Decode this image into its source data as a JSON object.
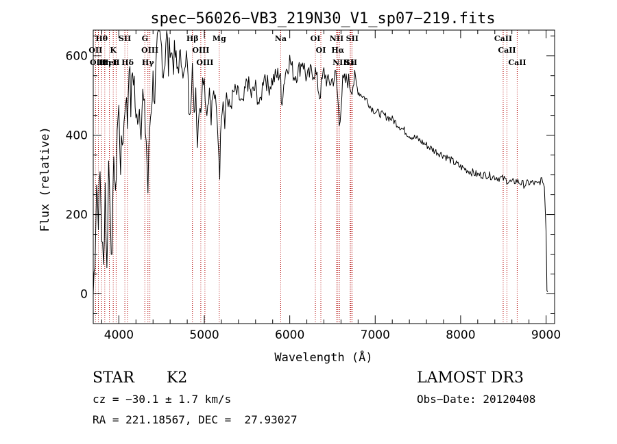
{
  "chart_data": {
    "type": "line",
    "title": "spec−56026−VB3_219N30_V1_sp07−219.fits",
    "xlabel": "Wavelength (Å)",
    "ylabel": "Flux (relative)",
    "xlim": [
      3700,
      9100
    ],
    "ylim": [
      -75,
      665
    ],
    "xticks": [
      4000,
      5000,
      6000,
      7000,
      8000,
      9000
    ],
    "xtick_labels": [
      "4000",
      "5000",
      "6000",
      "7000",
      "8000",
      "9000"
    ],
    "yticks": [
      0,
      200,
      400,
      600
    ],
    "ytick_labels": [
      "0",
      "200",
      "400",
      "600"
    ],
    "series": [
      {
        "name": "flux",
        "x": [
          3700,
          3720,
          3740,
          3760,
          3780,
          3800,
          3820,
          3840,
          3860,
          3880,
          3900,
          3920,
          3940,
          3960,
          3980,
          4000,
          4020,
          4040,
          4060,
          4080,
          4100,
          4120,
          4140,
          4160,
          4180,
          4200,
          4220,
          4240,
          4260,
          4280,
          4300,
          4320,
          4340,
          4360,
          4380,
          4400,
          4420,
          4440,
          4460,
          4480,
          4500,
          4520,
          4540,
          4560,
          4580,
          4600,
          4620,
          4640,
          4660,
          4680,
          4700,
          4720,
          4740,
          4760,
          4780,
          4800,
          4820,
          4840,
          4860,
          4880,
          4900,
          4920,
          4940,
          4960,
          4980,
          5000,
          5020,
          5040,
          5060,
          5080,
          5100,
          5120,
          5140,
          5160,
          5180,
          5200,
          5220,
          5240,
          5260,
          5280,
          5300,
          5350,
          5400,
          5450,
          5500,
          5550,
          5600,
          5650,
          5700,
          5750,
          5800,
          5850,
          5890,
          5900,
          5950,
          6000,
          6050,
          6100,
          6150,
          6200,
          6250,
          6300,
          6350,
          6400,
          6450,
          6500,
          6540,
          6563,
          6580,
          6620,
          6680,
          6720,
          6760,
          6800,
          6850,
          6900,
          6950,
          7000,
          7100,
          7200,
          7300,
          7400,
          7500,
          7600,
          7700,
          7800,
          7900,
          8000,
          8100,
          8200,
          8300,
          8400,
          8500,
          8550,
          8600,
          8650,
          8700,
          8750,
          8800,
          8850,
          8900,
          8950,
          8980,
          9000,
          9010,
          9020
        ],
        "y": [
          0,
          100,
          280,
          200,
          300,
          150,
          60,
          280,
          50,
          330,
          220,
          60,
          380,
          220,
          420,
          460,
          330,
          380,
          430,
          510,
          430,
          600,
          470,
          560,
          540,
          420,
          460,
          470,
          430,
          500,
          450,
          390,
          260,
          420,
          480,
          540,
          500,
          580,
          650,
          640,
          620,
          560,
          600,
          680,
          570,
          640,
          600,
          590,
          600,
          560,
          590,
          580,
          610,
          540,
          560,
          600,
          470,
          480,
          580,
          440,
          520,
          380,
          480,
          470,
          530,
          560,
          460,
          480,
          520,
          450,
          500,
          500,
          460,
          400,
          310,
          460,
          500,
          440,
          510,
          470,
          470,
          510,
          500,
          470,
          540,
          500,
          520,
          470,
          560,
          520,
          540,
          550,
          560,
          480,
          560,
          590,
          550,
          560,
          590,
          540,
          560,
          560,
          500,
          560,
          530,
          540,
          550,
          490,
          430,
          530,
          540,
          520,
          540,
          510,
          500,
          490,
          470,
          460,
          450,
          440,
          420,
          400,
          390,
          375,
          360,
          350,
          335,
          320,
          310,
          300,
          300,
          295,
          290,
          285,
          280,
          285,
          280,
          275,
          280,
          280,
          275,
          290,
          270,
          160,
          10,
          5
        ]
      }
    ],
    "lines": [
      {
        "label": "Hθ",
        "x": 3798,
        "color": "#b00000"
      },
      {
        "label": "OII",
        "x": 3727,
        "color": "#b00000"
      },
      {
        "label": "OIII",
        "x": 3760,
        "color": "#b00000"
      },
      {
        "label": "Hη",
        "x": 3835,
        "color": "#b00000"
      },
      {
        "label": "HeI",
        "x": 3889,
        "color": "#b00000"
      },
      {
        "label": "K",
        "x": 3934,
        "color": "#b00000"
      },
      {
        "label": "H",
        "x": 3968,
        "color": "#b00000"
      },
      {
        "label": "SII",
        "x": 4070,
        "color": "#b00000"
      },
      {
        "label": "Hδ",
        "x": 4102,
        "color": "#b00000"
      },
      {
        "label": "G",
        "x": 4304,
        "color": "#b00000"
      },
      {
        "label": "OIII",
        "x": 4363,
        "color": "#b00000"
      },
      {
        "label": "Hγ",
        "x": 4340,
        "color": "#b00000"
      },
      {
        "label": "Hβ",
        "x": 4861,
        "color": "#b00000"
      },
      {
        "label": "OIII",
        "x": 4959,
        "color": "#b00000"
      },
      {
        "label": "OIII",
        "x": 5007,
        "color": "#b00000"
      },
      {
        "label": "Mg",
        "x": 5175,
        "color": "#b00000"
      },
      {
        "label": "Na",
        "x": 5894,
        "color": "#b00000"
      },
      {
        "label": "OI",
        "x": 6300,
        "color": "#b00000"
      },
      {
        "label": "OI",
        "x": 6364,
        "color": "#b00000"
      },
      {
        "label": "NII",
        "x": 6548,
        "color": "#b00000"
      },
      {
        "label": "Hα",
        "x": 6563,
        "color": "#b00000"
      },
      {
        "label": "NII",
        "x": 6583,
        "color": "#b00000"
      },
      {
        "label": "Li",
        "x": 6707,
        "color": "#b00000"
      },
      {
        "label": "SII",
        "x": 6716,
        "color": "#b00000"
      },
      {
        "label": "SII",
        "x": 6731,
        "color": "#b00000"
      },
      {
        "label": "CaII",
        "x": 8498,
        "color": "#b00000"
      },
      {
        "label": "CaII",
        "x": 8542,
        "color": "#b00000"
      },
      {
        "label": "CaII",
        "x": 8662,
        "color": "#b00000"
      }
    ]
  },
  "info": {
    "class": "STAR",
    "subclass": "K2",
    "survey": "LAMOST DR3",
    "cz": "cz = −30.1 ± 1.7 km/s",
    "obs_date": "Obs−Date: 20120408",
    "radec": "RA = 221.18567, DEC =  27.93027"
  }
}
